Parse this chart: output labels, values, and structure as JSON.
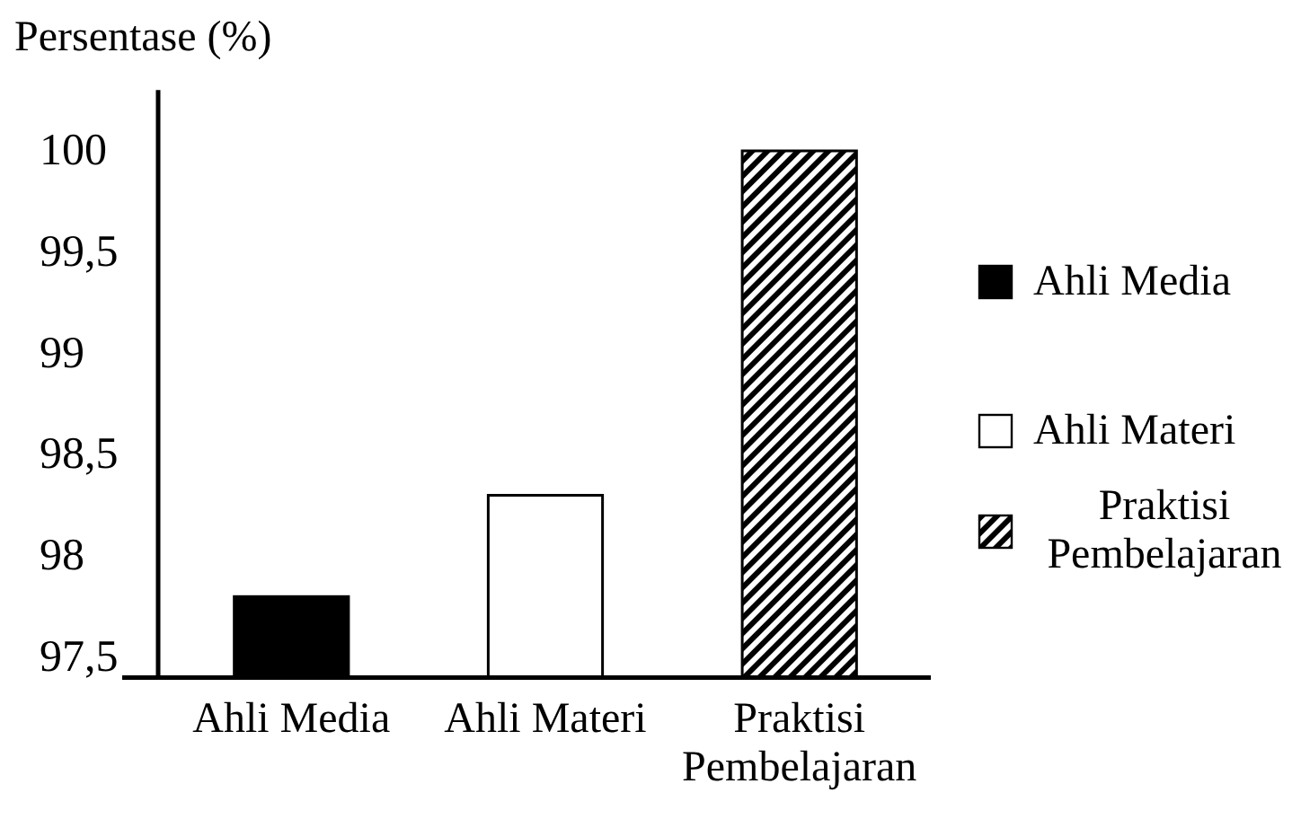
{
  "chart_data": {
    "type": "bar",
    "ylabel": "Persentase (%)",
    "categories": [
      "Ahli Media",
      "Ahli Materi",
      "Praktisi Pembelajaran"
    ],
    "series": [
      {
        "name": "Ahli Media",
        "color": "#000000",
        "values": [
          97.8,
          null,
          null
        ]
      },
      {
        "name": "Ahli Materi",
        "color": "#ffffff",
        "values": [
          null,
          98.3,
          null
        ]
      },
      {
        "name": "Praktisi Pembelajaran",
        "color": "#000000",
        "values": [
          null,
          null,
          100
        ]
      }
    ],
    "ylim": [
      97.4,
      100.3
    ],
    "yticks": [
      {
        "value": 97.5,
        "label": "97,5"
      },
      98,
      {
        "value": 98.5,
        "label": "98,5"
      },
      99,
      {
        "value": 99.5,
        "label": "99,5"
      },
      100
    ],
    "legend": "right",
    "grid": false
  }
}
